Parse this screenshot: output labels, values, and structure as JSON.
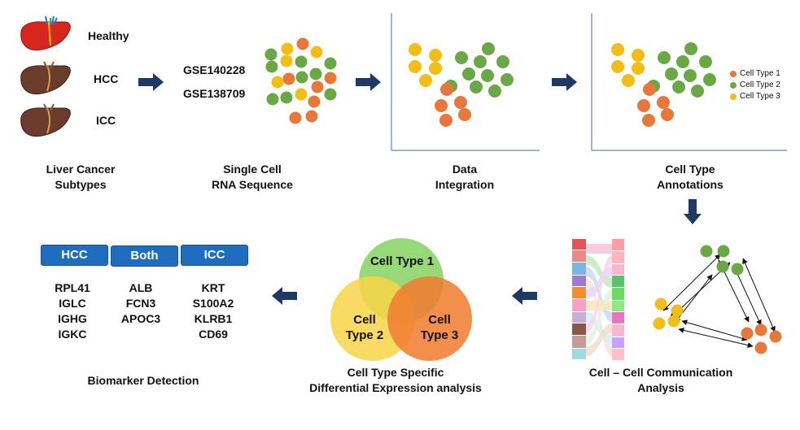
{
  "samples": {
    "healthy": "Healthy",
    "hcc": "HCC",
    "icc": "ICC"
  },
  "datasets": [
    "GSE140228",
    "GSE138709"
  ],
  "steps": {
    "subtypes": [
      "Liver Cancer",
      "Subtypes"
    ],
    "sequence": [
      "Single Cell",
      "RNA Sequence"
    ],
    "integration": [
      "Data",
      "Integration"
    ],
    "annotation": [
      "Cell Type",
      "Annotations"
    ],
    "communication": [
      "Cell – Cell  Communication",
      "Analysis"
    ],
    "differential": [
      "Cell Type Specific",
      "Differential Expression analysis"
    ],
    "biomarker": "Biomarker Detection"
  },
  "legend": [
    {
      "label": "Cell Type 1",
      "color": "#e8773a"
    },
    {
      "label": "Cell Type 2",
      "color": "#6aa846"
    },
    {
      "label": "Cell Type 3",
      "color": "#f2bd14"
    }
  ],
  "venn": {
    "type1": "Cell Type 1",
    "type2": [
      "Cell",
      "Type 2"
    ],
    "type3": [
      "Cell",
      "Type 3"
    ]
  },
  "biomarkers": {
    "headers": [
      "HCC",
      "Both",
      "ICC"
    ],
    "hcc": [
      "RPL41",
      "IGLC",
      "IGHG",
      "IGKC"
    ],
    "both": [
      "ALB",
      "FCN3",
      "APOC3"
    ],
    "icc": [
      "KRT",
      "S100A2",
      "KLRB1",
      "CD69"
    ]
  },
  "colors": {
    "arrow": "#203864",
    "orange": "#e8773a",
    "green": "#6aa846",
    "yellow": "#f2bd14",
    "header": "#1f6dbf"
  }
}
